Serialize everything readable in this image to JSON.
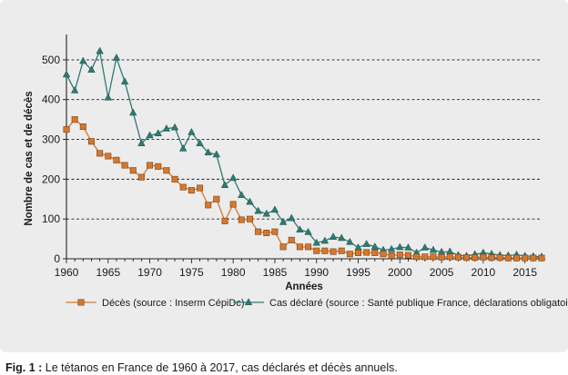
{
  "caption": {
    "label": "Fig. 1 :",
    "text": "Le tétanos en France de 1960 à 2017, cas déclarés et décès annuels."
  },
  "chart_data": {
    "type": "line",
    "xlabel": "Années",
    "ylabel": "Nombre de cas et de décès",
    "xlim": [
      1960,
      2017
    ],
    "ylim": [
      0,
      550
    ],
    "x_ticks": [
      "1960",
      "1965",
      "1970",
      "1975",
      "1980",
      "1985",
      "1990",
      "1995",
      "2000",
      "2005",
      "2010",
      "2015"
    ],
    "y_ticks": [
      "0",
      "100",
      "200",
      "300",
      "400",
      "500"
    ],
    "grid": "horizontal dashed",
    "legend_position": "bottom",
    "x": [
      1960,
      1961,
      1962,
      1963,
      1964,
      1965,
      1966,
      1967,
      1968,
      1969,
      1970,
      1971,
      1972,
      1973,
      1974,
      1975,
      1976,
      1977,
      1978,
      1979,
      1980,
      1981,
      1982,
      1983,
      1984,
      1985,
      1986,
      1987,
      1988,
      1989,
      1990,
      1991,
      1992,
      1993,
      1994,
      1995,
      1996,
      1997,
      1998,
      1999,
      2000,
      2001,
      2002,
      2003,
      2004,
      2005,
      2006,
      2007,
      2008,
      2009,
      2010,
      2011,
      2012,
      2013,
      2014,
      2015,
      2016,
      2017
    ],
    "series": [
      {
        "name": "Décès (source : Inserm CépiDc)",
        "color": "#d4782f",
        "marker": "square",
        "values": [
          325,
          350,
          332,
          295,
          265,
          258,
          248,
          235,
          222,
          205,
          235,
          232,
          222,
          200,
          180,
          172,
          178,
          135,
          150,
          95,
          137,
          98,
          100,
          68,
          65,
          68,
          30,
          47,
          30,
          30,
          20,
          20,
          18,
          20,
          12,
          15,
          16,
          15,
          12,
          8,
          10,
          9,
          5,
          5,
          5,
          4,
          5,
          4,
          3,
          3,
          4,
          3,
          3,
          2,
          2,
          2,
          2,
          2
        ]
      },
      {
        "name": "Cas déclaré (source : Santé publique France, déclarations obligatoires)",
        "color": "#2e7a72",
        "marker": "triangle",
        "values": [
          463,
          423,
          497,
          475,
          522,
          405,
          505,
          445,
          367,
          290,
          310,
          315,
          327,
          330,
          277,
          318,
          290,
          267,
          262,
          185,
          203,
          160,
          143,
          120,
          113,
          123,
          92,
          102,
          73,
          67,
          40,
          45,
          55,
          52,
          42,
          28,
          37,
          30,
          22,
          24,
          29,
          28,
          15,
          28,
          22,
          17,
          18,
          9,
          7,
          11,
          15,
          12,
          9,
          8,
          10,
          7,
          6,
          5
        ]
      }
    ]
  }
}
